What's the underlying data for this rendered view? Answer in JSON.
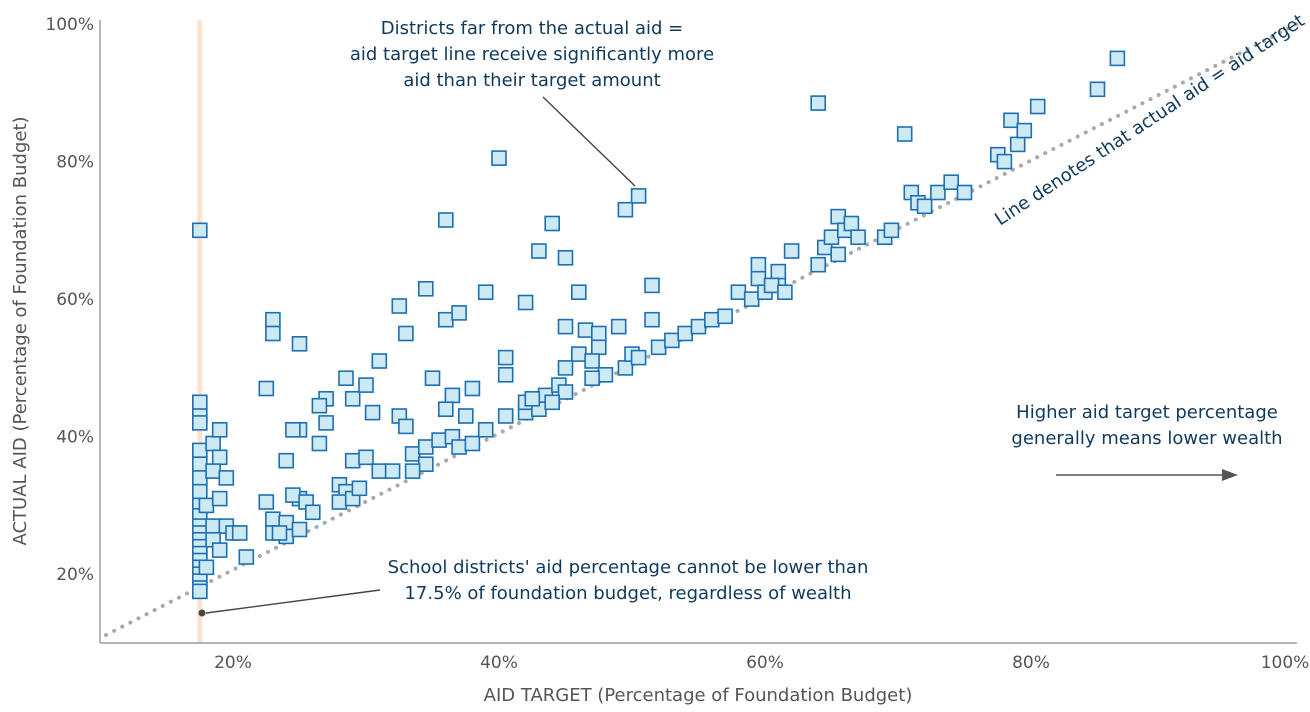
{
  "chart_data": {
    "type": "scatter",
    "xlabel": "AID TARGET (Percentage of Foundation Budget)",
    "ylabel": "ACTUAL AID (Percentage of Foundation Budget)",
    "xlim": [
      10,
      100
    ],
    "ylim": [
      10,
      100
    ],
    "x_ticks": [
      "20%",
      "40%",
      "60%",
      "80%",
      "100%"
    ],
    "y_ticks": [
      "20%",
      "40%",
      "60%",
      "80%",
      "100%"
    ],
    "grid": false,
    "marker": "square",
    "colors": {
      "marker_fill": "#cce9f4",
      "marker_stroke": "#1d6fb3",
      "reference_band": "#fde3cf",
      "diagonal": "#aaaaaa",
      "annotation_text": "#0f3a5c",
      "leader_line": "#444444"
    },
    "reference_band_x": 17.5,
    "diagonal": {
      "from": [
        10,
        10
      ],
      "to": [
        100,
        100
      ],
      "style": "dotted"
    },
    "annotations": [
      "Districts far from the actual aid = aid target line receive significantly more aid than their target amount",
      "Line denotes that actual aid = aid target",
      "Higher aid target percentage generally means lower wealth",
      "School districts' aid percentage cannot be lower than 17.5% of foundation budget, regardless of wealth"
    ],
    "points": [
      [
        17.5,
        70
      ],
      [
        17.5,
        45
      ],
      [
        17.5,
        43
      ],
      [
        17.5,
        42
      ],
      [
        17.5,
        38
      ],
      [
        17.5,
        36
      ],
      [
        17.5,
        34
      ],
      [
        17.5,
        32
      ],
      [
        17.5,
        30
      ],
      [
        17.5,
        28.5
      ],
      [
        17.5,
        27
      ],
      [
        17.5,
        26
      ],
      [
        17.5,
        25
      ],
      [
        17.5,
        24
      ],
      [
        17.5,
        23
      ],
      [
        17.5,
        22
      ],
      [
        17.5,
        21
      ],
      [
        17.5,
        20
      ],
      [
        17.5,
        19
      ],
      [
        17.5,
        18
      ],
      [
        17.5,
        17.5
      ],
      [
        18.5,
        39
      ],
      [
        19,
        41
      ],
      [
        19,
        37
      ],
      [
        18.5,
        35
      ],
      [
        19.5,
        34
      ],
      [
        18,
        30
      ],
      [
        19,
        31
      ],
      [
        18.5,
        27
      ],
      [
        19.5,
        27
      ],
      [
        20,
        26
      ],
      [
        18.5,
        25
      ],
      [
        19,
        23.5
      ],
      [
        20.5,
        26
      ],
      [
        18,
        21
      ],
      [
        21,
        22.5
      ],
      [
        22.5,
        47
      ],
      [
        23,
        57
      ],
      [
        23,
        55
      ],
      [
        25,
        53.5
      ],
      [
        24,
        36.5
      ],
      [
        25,
        41
      ],
      [
        24.5,
        41
      ],
      [
        26.5,
        39
      ],
      [
        27,
        45.5
      ],
      [
        26.5,
        44.5
      ],
      [
        27,
        42
      ],
      [
        22.5,
        30.5
      ],
      [
        23,
        28
      ],
      [
        24,
        27.5
      ],
      [
        25,
        31
      ],
      [
        24.5,
        31.5
      ],
      [
        25.5,
        30.5
      ],
      [
        26,
        29
      ],
      [
        23,
        26
      ],
      [
        24,
        25.5
      ],
      [
        25,
        26.5
      ],
      [
        23.5,
        26
      ],
      [
        28.5,
        48.5
      ],
      [
        29,
        45.5
      ],
      [
        30,
        47.5
      ],
      [
        31,
        51
      ],
      [
        30.5,
        43.5
      ],
      [
        32.5,
        43
      ],
      [
        33,
        41.5
      ],
      [
        29,
        36.5
      ],
      [
        30,
        37
      ],
      [
        31,
        35
      ],
      [
        32,
        35
      ],
      [
        28,
        33
      ],
      [
        28.5,
        32
      ],
      [
        28,
        30.5
      ],
      [
        29,
        31
      ],
      [
        29.5,
        32.5
      ],
      [
        32.5,
        59
      ],
      [
        34.5,
        61.5
      ],
      [
        33,
        55
      ],
      [
        36,
        71.5
      ],
      [
        36,
        57
      ],
      [
        37,
        58
      ],
      [
        35,
        48.5
      ],
      [
        36.5,
        46
      ],
      [
        37.5,
        43
      ],
      [
        33.5,
        37.5
      ],
      [
        34.5,
        38.5
      ],
      [
        35.5,
        39.5
      ],
      [
        36.5,
        40
      ],
      [
        37,
        38.5
      ],
      [
        38,
        39
      ],
      [
        39,
        41
      ],
      [
        34.5,
        36
      ],
      [
        33.5,
        35
      ],
      [
        36,
        44
      ],
      [
        38,
        47
      ],
      [
        40,
        80.5
      ],
      [
        39,
        61
      ],
      [
        40.5,
        51.5
      ],
      [
        40.5,
        49
      ],
      [
        40.5,
        43
      ],
      [
        42,
        43.5
      ],
      [
        42,
        45
      ],
      [
        43,
        67
      ],
      [
        42,
        59.5
      ],
      [
        44,
        71
      ],
      [
        45,
        66
      ],
      [
        46,
        61
      ],
      [
        45,
        56
      ],
      [
        46.5,
        55.5
      ],
      [
        47.5,
        55
      ],
      [
        47.5,
        53
      ],
      [
        46,
        52
      ],
      [
        45,
        50
      ],
      [
        47,
        51
      ],
      [
        48,
        49
      ],
      [
        49,
        56
      ],
      [
        49.5,
        50
      ],
      [
        50,
        52
      ],
      [
        49.5,
        73
      ],
      [
        50.5,
        75
      ],
      [
        51.5,
        62
      ],
      [
        51.5,
        57
      ],
      [
        43.5,
        46
      ],
      [
        44.5,
        47.5
      ],
      [
        45,
        46.5
      ],
      [
        43,
        44
      ],
      [
        42.5,
        45.5
      ],
      [
        44,
        45
      ],
      [
        47,
        48.5
      ],
      [
        50.5,
        51.5
      ],
      [
        52,
        53
      ],
      [
        53,
        54
      ],
      [
        54,
        55
      ],
      [
        55,
        56
      ],
      [
        56,
        57
      ],
      [
        57,
        57.5
      ],
      [
        58,
        61
      ],
      [
        59,
        60
      ],
      [
        59.5,
        63
      ],
      [
        59.5,
        65
      ],
      [
        60,
        61
      ],
      [
        61,
        62.5
      ],
      [
        61,
        64
      ],
      [
        60.5,
        62
      ],
      [
        61.5,
        61
      ],
      [
        62,
        67
      ],
      [
        64,
        88.5
      ],
      [
        64,
        65
      ],
      [
        64.5,
        67.5
      ],
      [
        65,
        69
      ],
      [
        65.5,
        72
      ],
      [
        66,
        70
      ],
      [
        66.5,
        71
      ],
      [
        67,
        69
      ],
      [
        65.5,
        66.5
      ],
      [
        69,
        69
      ],
      [
        69.5,
        70
      ],
      [
        70.5,
        84
      ],
      [
        71,
        75.5
      ],
      [
        71.5,
        74
      ],
      [
        72,
        73.5
      ],
      [
        73,
        75.5
      ],
      [
        74,
        77
      ],
      [
        75,
        75.5
      ],
      [
        77.5,
        81
      ],
      [
        78,
        80
      ],
      [
        78.5,
        86
      ],
      [
        79,
        82.5
      ],
      [
        79.5,
        84.5
      ],
      [
        80.5,
        88
      ],
      [
        85,
        90.5
      ],
      [
        86.5,
        95
      ]
    ]
  }
}
